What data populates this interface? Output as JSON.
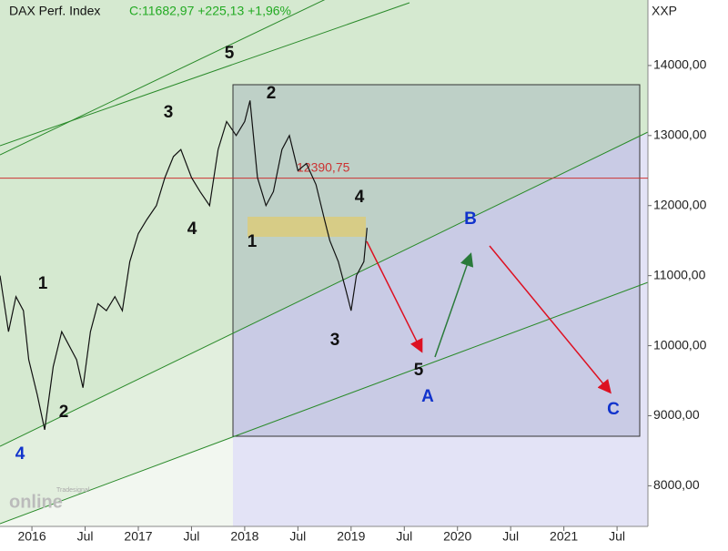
{
  "chart_data": {
    "type": "line",
    "title": "DAX Perf. Index",
    "quote": "C:11682,97 +225,13 +1,96%",
    "y_axis_label": "XXP",
    "watermark": [
      "Tradesignal",
      "online"
    ],
    "series": [
      {
        "name": "DAX Perf. Index",
        "color": "#111111",
        "x": [
          2015.7,
          2015.78,
          2015.85,
          2015.92,
          2015.97,
          2016.05,
          2016.12,
          2016.2,
          2016.28,
          2016.35,
          2016.42,
          2016.48,
          2016.55,
          2016.62,
          2016.7,
          2016.78,
          2016.85,
          2016.92,
          2017.0,
          2017.08,
          2017.17,
          2017.25,
          2017.33,
          2017.4,
          2017.5,
          2017.58,
          2017.67,
          2017.75,
          2017.83,
          2017.92,
          2018.0,
          2018.05,
          2018.12,
          2018.2,
          2018.27,
          2018.35,
          2018.42,
          2018.5,
          2018.58,
          2018.67,
          2018.75,
          2018.8,
          2018.88,
          2018.95,
          2019.0,
          2019.05,
          2019.12,
          2019.15
        ],
        "values": [
          11000,
          10200,
          10700,
          10500,
          9800,
          9300,
          8800,
          9700,
          10200,
          10000,
          9800,
          9400,
          10200,
          10600,
          10500,
          10700,
          10500,
          11200,
          11600,
          11800,
          12000,
          12400,
          12700,
          12800,
          12400,
          12200,
          12000,
          12800,
          13200,
          13000,
          13200,
          13500,
          12400,
          12000,
          12200,
          12800,
          13000,
          12500,
          12600,
          12300,
          11800,
          11500,
          11200,
          10800,
          10500,
          11000,
          11200,
          11682
        ]
      }
    ],
    "hline": {
      "value": 12390.75,
      "label": "12390,75",
      "color": "#cc3333"
    },
    "annotations": [
      "5",
      "3",
      "4",
      "1",
      "2",
      "4",
      "2",
      "1",
      "4",
      "3",
      "5",
      "A",
      "B",
      "C"
    ],
    "xlim": [
      2015.7,
      2021.79
    ],
    "xticks": [
      2016,
      {
        "value": 2016.5,
        "label": "Jul"
      },
      2017,
      {
        "value": 2017.5,
        "label": "Jul"
      },
      2018,
      {
        "value": 2018.5,
        "label": "Jul"
      },
      2019,
      {
        "value": 2019.5,
        "label": "Jul"
      },
      2020,
      {
        "value": 2020.5,
        "label": "Jul"
      },
      2021,
      {
        "value": 2021.5,
        "label": "Jul"
      }
    ],
    "ylim": [
      7420,
      14935
    ],
    "yticks": [
      {
        "value": 8000,
        "label": "8000,00"
      },
      {
        "value": 9000,
        "label": "9000,00"
      },
      {
        "value": 10000,
        "label": "10000,00"
      },
      {
        "value": 11000,
        "label": "11000,00"
      },
      {
        "value": 12000,
        "label": "12000,00"
      },
      {
        "value": 13000,
        "label": "13000,00"
      },
      {
        "value": 14000,
        "label": "14000,00"
      }
    ]
  }
}
